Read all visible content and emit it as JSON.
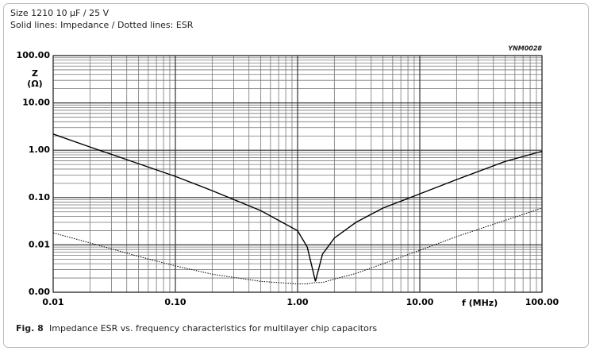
{
  "chart_data": {
    "type": "line",
    "title": "Size 1210 10 µF / 25 V",
    "subtitle": "Solid lines: Impedance / Dotted lines: ESR",
    "code": "YNM0028",
    "ylabel": "Z",
    "yunit": "(Ω)",
    "xlabel": "f  (MHz)",
    "caption_label": "Fig. 8",
    "caption": "Impedance ESR vs. frequency characteristics for multilayer chip capacitors",
    "xscale": "log",
    "yscale": "log",
    "grid": true,
    "xlim": [
      0.01,
      100
    ],
    "ylim": [
      0.001,
      100
    ],
    "xticks": [
      {
        "value": 0.01,
        "label": "0.01"
      },
      {
        "value": 0.1,
        "label": "0.10"
      },
      {
        "value": 1,
        "label": "1.00"
      },
      {
        "value": 10,
        "label": "10.00"
      },
      {
        "value": 100,
        "label": "100.00"
      }
    ],
    "yticks": [
      {
        "value": 0.001,
        "label": "0.00"
      },
      0.01,
      {
        "value": 0.1,
        "label": "0.10"
      },
      {
        "value": 1,
        "label": "1.00"
      },
      {
        "value": 10,
        "label": "10.00"
      },
      {
        "value": 100,
        "label": "100.00"
      }
    ],
    "x": [
      0.01,
      0.02,
      0.05,
      0.1,
      0.2,
      0.5,
      1,
      1.2,
      1.4,
      1.6,
      2,
      3,
      5,
      10,
      20,
      50,
      100
    ],
    "series": [
      {
        "style": "solid",
        "color": "#000000",
        "values": [
          2.2,
          1.17,
          0.52,
          0.28,
          0.14,
          0.053,
          0.02,
          0.009,
          0.0017,
          0.0064,
          0.014,
          0.03,
          0.06,
          0.12,
          0.24,
          0.58,
          0.95
        ]
      },
      {
        "style": "dotted",
        "color": "#000000",
        "values": [
          0.018,
          0.011,
          0.0057,
          0.0036,
          0.0024,
          0.0017,
          0.0015,
          0.0015,
          0.0016,
          0.0016,
          0.0019,
          0.0025,
          0.004,
          0.0077,
          0.015,
          0.033,
          0.06
        ]
      }
    ]
  }
}
